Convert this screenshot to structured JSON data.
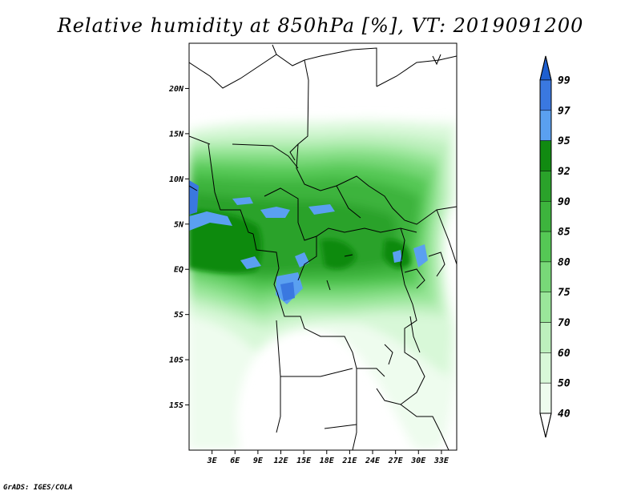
{
  "title": "Relative humidity at 850hPa [%], VT: 2019091200",
  "credit": "GrADS: IGES/COLA",
  "map": {
    "lat_labels": [
      "20N",
      "15N",
      "10N",
      "5N",
      "EQ",
      "5S",
      "10S",
      "15S"
    ],
    "lat_values": [
      20,
      15,
      10,
      5,
      0,
      -5,
      -10,
      -15
    ],
    "lon_labels": [
      "3E",
      "6E",
      "9E",
      "12E",
      "15E",
      "18E",
      "21E",
      "24E",
      "27E",
      "30E",
      "33E"
    ],
    "lon_values": [
      3,
      6,
      9,
      12,
      15,
      18,
      21,
      24,
      27,
      30,
      33
    ],
    "lon_range": [
      0,
      35
    ],
    "lat_range": [
      -20,
      25
    ]
  },
  "colorbar": {
    "labels": [
      "99",
      "97",
      "95",
      "92",
      "90",
      "85",
      "80",
      "75",
      "70",
      "60",
      "50",
      "40"
    ],
    "colors": [
      "#1e5fd0",
      "#3a78e0",
      "#5aa0f0",
      "#118a11",
      "#2aa22a",
      "#3db43d",
      "#55c855",
      "#78d878",
      "#9ae69a",
      "#bdf0bd",
      "#d8f8d8",
      "#eefcee",
      "#ffffff"
    ],
    "levels_ascending": [
      40,
      50,
      60,
      70,
      75,
      80,
      85,
      90,
      92,
      95,
      97,
      99
    ]
  }
}
